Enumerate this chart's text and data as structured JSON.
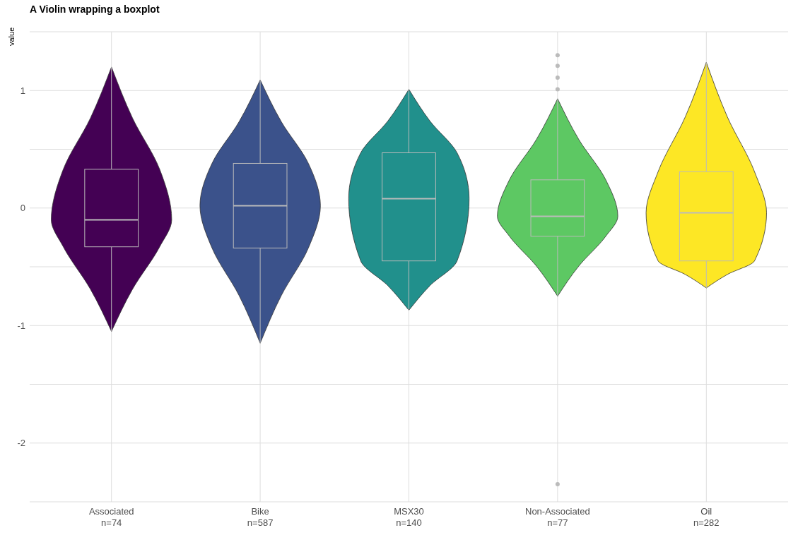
{
  "chart_data": {
    "type": "box",
    "title": "A Violin wrapping a boxplot",
    "ylabel": "value",
    "categories": [
      "Associated\nn=74",
      "Bike\nn=587",
      "MSX30\nn=140",
      "Non-Associated\nn=77",
      "Oil\nn=282"
    ],
    "colors": [
      "#440154",
      "#3b528b",
      "#21908c",
      "#5dc863",
      "#fde725"
    ],
    "boxes": [
      {
        "low": -1.05,
        "q1": -0.33,
        "median": -0.1,
        "q3": 0.33,
        "high": 1.2
      },
      {
        "low": -1.15,
        "q1": -0.34,
        "median": 0.02,
        "q3": 0.38,
        "high": 1.09
      },
      {
        "low": -0.87,
        "q1": -0.45,
        "median": 0.08,
        "q3": 0.47,
        "high": 1.01
      },
      {
        "low": -0.75,
        "q1": -0.24,
        "median": -0.07,
        "q3": 0.24,
        "high": 0.93,
        "outliers": [
          1.01,
          1.11,
          1.21,
          1.3,
          -2.35
        ]
      },
      {
        "low": -0.68,
        "q1": -0.45,
        "median": -0.04,
        "q3": 0.31,
        "high": 1.24
      }
    ],
    "ylim": [
      -2.5,
      1.5
    ],
    "yticks": [
      {
        "value": -2.5,
        "label": null
      },
      -2,
      {
        "value": -1.5,
        "label": null
      },
      -1,
      {
        "value": -0.5,
        "label": null
      },
      0,
      {
        "value": 0.5,
        "label": null
      },
      1,
      {
        "value": 1.5,
        "label": null
      }
    ],
    "grid": true
  }
}
